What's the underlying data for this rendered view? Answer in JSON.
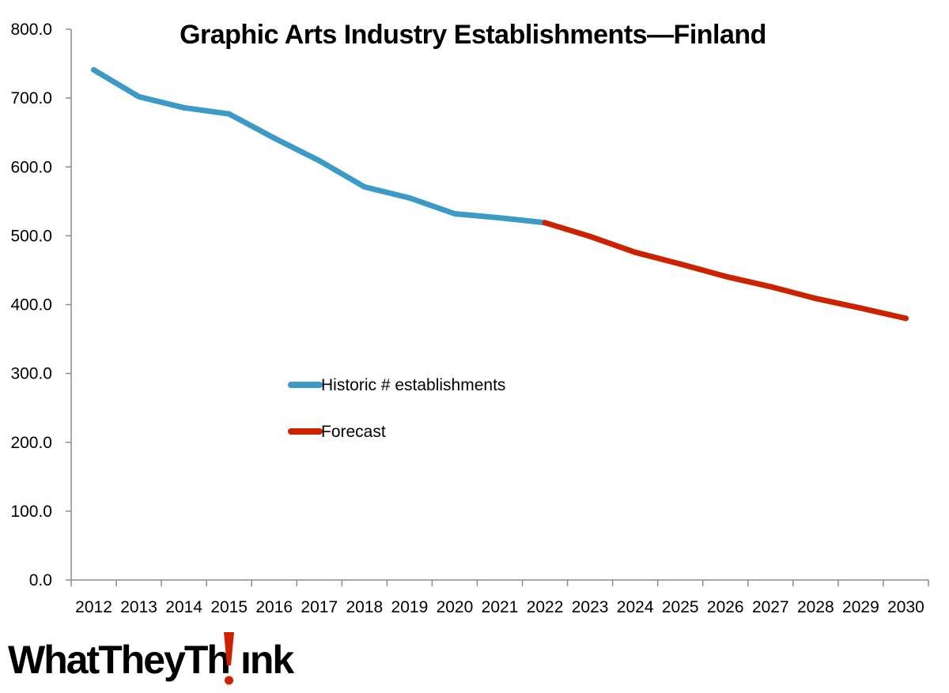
{
  "chart_data": {
    "type": "line",
    "title": "Graphic Arts Industry Establishments—Finland",
    "xlabel": "",
    "ylabel": "",
    "ylim": [
      0,
      800
    ],
    "y_ticks": [
      "0.0",
      "100.0",
      "200.0",
      "300.0",
      "400.0",
      "500.0",
      "600.0",
      "700.0",
      "800.0"
    ],
    "categories": [
      "2012",
      "2013",
      "2014",
      "2015",
      "2016",
      "2017",
      "2018",
      "2019",
      "2020",
      "2021",
      "2022",
      "2023",
      "2024",
      "2025",
      "2026",
      "2027",
      "2028",
      "2029",
      "2030"
    ],
    "series": [
      {
        "name": "Historic # establishments",
        "color": "#3b9ac6",
        "x": [
          "2012",
          "2013",
          "2014",
          "2015",
          "2016",
          "2017",
          "2018",
          "2019",
          "2020",
          "2021",
          "2022"
        ],
        "values": [
          741,
          702,
          686,
          677,
          642,
          609,
          571,
          555,
          532,
          526,
          519
        ]
      },
      {
        "name": "Forecast",
        "color": "#cc2200",
        "x": [
          "2022",
          "2023",
          "2024",
          "2025",
          "2026",
          "2027",
          "2028",
          "2029",
          "2030"
        ],
        "values": [
          519,
          499,
          476,
          459,
          441,
          426,
          409,
          395,
          380
        ]
      }
    ],
    "grid": false,
    "legend_position": "center-left"
  },
  "logo": {
    "text_before": "WhatTheyTh",
    "text_after": "nk",
    "accent_color": "#cc2200"
  }
}
